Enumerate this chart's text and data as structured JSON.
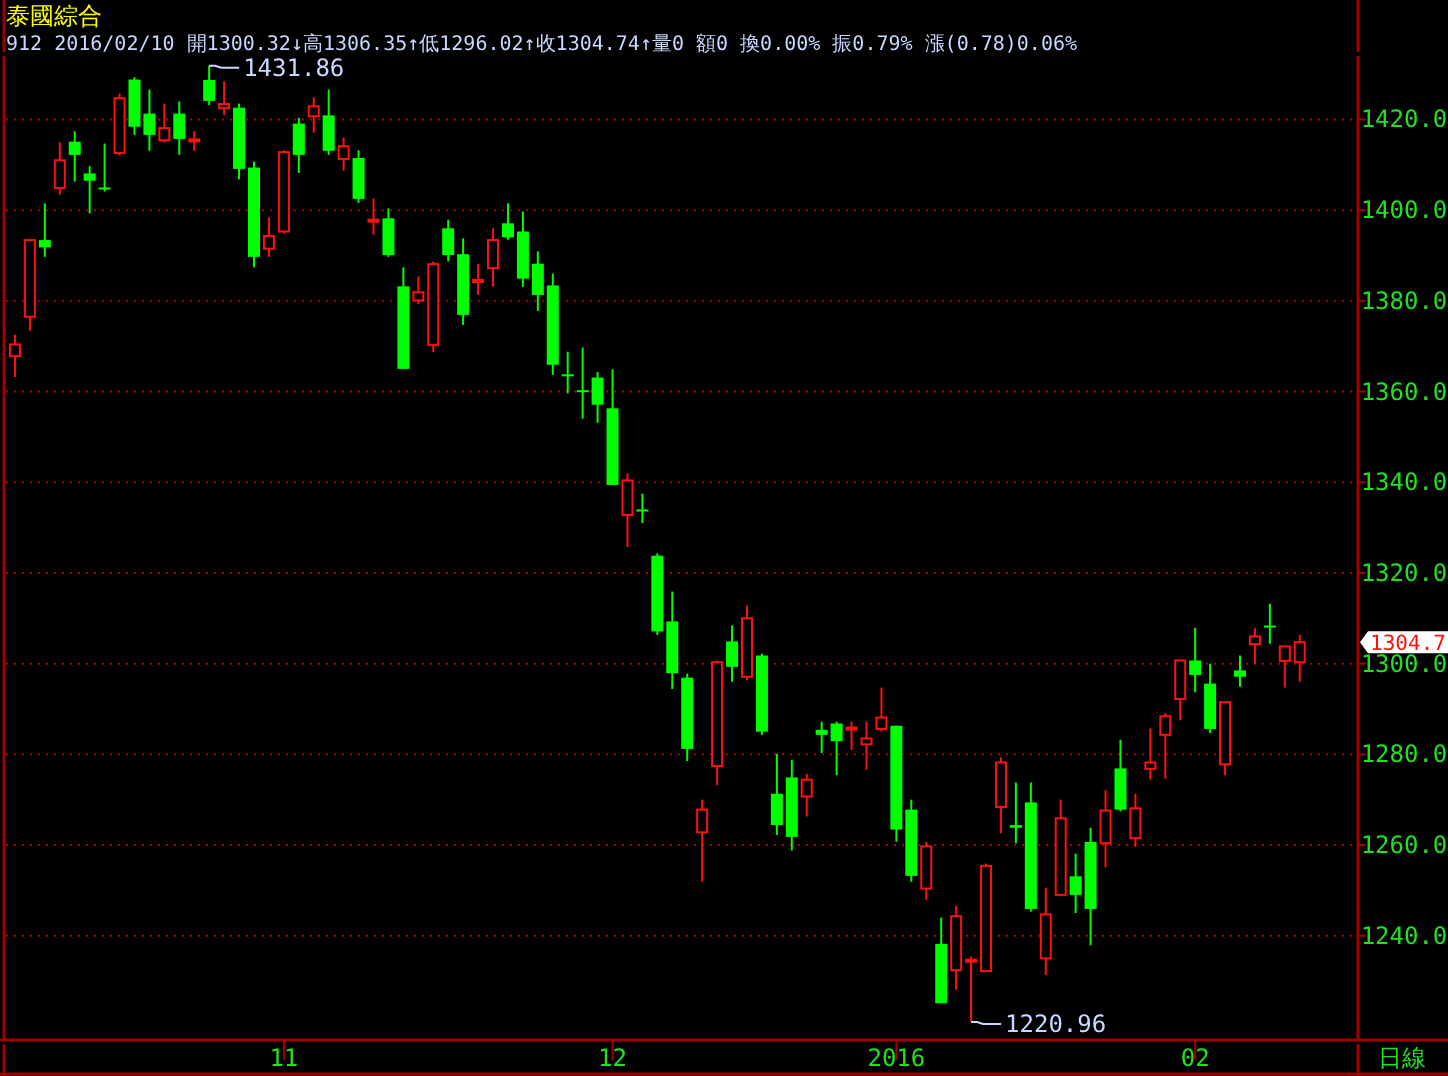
{
  "chart_data": {
    "type": "candlestick",
    "title": "泰國綜合",
    "subtitle": "912 2016/02/10 開1300.32↓高1306.35↑低1296.02↑收1304.74↑量0 額0 換0.00% 振0.79% 漲(0.78)0.06%",
    "categories": [
      null,
      null,
      null,
      null,
      null,
      null,
      null,
      null,
      null,
      null,
      null,
      null,
      null,
      null,
      null,
      null,
      null,
      null,
      "11",
      null,
      null,
      null,
      null,
      null,
      null,
      null,
      null,
      null,
      null,
      null,
      null,
      null,
      null,
      null,
      null,
      null,
      null,
      null,
      null,
      null,
      "12",
      null,
      null,
      null,
      null,
      null,
      null,
      null,
      null,
      null,
      null,
      null,
      null,
      null,
      null,
      null,
      null,
      null,
      null,
      "2016",
      null,
      null,
      null,
      null,
      null,
      null,
      null,
      null,
      null,
      null,
      null,
      null,
      null,
      null,
      null,
      null,
      null,
      null,
      null,
      "02",
      null,
      null,
      null,
      null,
      null,
      null,
      null
    ],
    "ohlc": [
      [
        1367.8,
        1372.5,
        1363.2,
        1370.4
      ],
      [
        1376.5,
        1393.4,
        1373.4,
        1393.4
      ],
      [
        1393.4,
        1401.5,
        1389.7,
        1391.8
      ],
      [
        1404.9,
        1415.0,
        1403.4,
        1411.0
      ],
      [
        1415.1,
        1417.4,
        1406.3,
        1412.2
      ],
      [
        1408.1,
        1409.7,
        1399.3,
        1406.5
      ],
      [
        1405.0,
        1414.7,
        1404.1,
        1404.7
      ],
      [
        1412.6,
        1425.7,
        1412.1,
        1424.7
      ],
      [
        1428.8,
        1429.3,
        1416.6,
        1418.4
      ],
      [
        1421.3,
        1426.6,
        1413.1,
        1416.6
      ],
      [
        1415.4,
        1423.5,
        1414.9,
        1418.1
      ],
      [
        1421.3,
        1424.0,
        1412.2,
        1415.7
      ],
      [
        1415.3,
        1417.4,
        1413.1,
        1415.6
      ],
      [
        1428.7,
        1431.86,
        1423.2,
        1424.1
      ],
      [
        1422.5,
        1428.4,
        1421.0,
        1423.4
      ],
      [
        1422.6,
        1423.5,
        1406.8,
        1409.1
      ],
      [
        1409.4,
        1410.7,
        1387.4,
        1389.7
      ],
      [
        1391.5,
        1398.4,
        1389.7,
        1394.3
      ],
      [
        1395.3,
        1413.2,
        1394.9,
        1412.8
      ],
      [
        1419.1,
        1420.4,
        1408.2,
        1412.2
      ],
      [
        1420.7,
        1424.9,
        1417.1,
        1422.9
      ],
      [
        1420.9,
        1426.6,
        1412.2,
        1413.1
      ],
      [
        1411.3,
        1416.0,
        1408.7,
        1414.1
      ],
      [
        1411.5,
        1413.2,
        1401.6,
        1402.5
      ],
      [
        1397.6,
        1402.6,
        1394.6,
        1397.9
      ],
      [
        1398.2,
        1400.4,
        1389.7,
        1390.1
      ],
      [
        1383.2,
        1387.4,
        1365.0,
        1365.0
      ],
      [
        1380.1,
        1385.4,
        1379.3,
        1381.9
      ],
      [
        1370.3,
        1388.7,
        1368.7,
        1388.1
      ],
      [
        1396.0,
        1397.9,
        1388.7,
        1390.1
      ],
      [
        1390.3,
        1393.8,
        1374.7,
        1376.9
      ],
      [
        1384.3,
        1388.1,
        1381.3,
        1384.6
      ],
      [
        1387.2,
        1396.0,
        1383.1,
        1393.4
      ],
      [
        1397.1,
        1401.5,
        1393.5,
        1394.0
      ],
      [
        1395.3,
        1399.7,
        1383.1,
        1384.9
      ],
      [
        1388.2,
        1390.9,
        1377.8,
        1381.3
      ],
      [
        1383.4,
        1386.0,
        1363.7,
        1365.9
      ],
      [
        1363.8,
        1368.8,
        1359.6,
        1363.5
      ],
      [
        1360.3,
        1369.7,
        1354.0,
        1360.0
      ],
      [
        1363.1,
        1364.3,
        1353.1,
        1357.1
      ],
      [
        1356.3,
        1364.9,
        1339.4,
        1339.4
      ],
      [
        1332.8,
        1341.9,
        1325.7,
        1340.4
      ],
      [
        1334.0,
        1337.5,
        1331.0,
        1333.7
      ],
      [
        1323.8,
        1324.3,
        1306.3,
        1307.1
      ],
      [
        1309.3,
        1315.9,
        1294.4,
        1297.9
      ],
      [
        1296.9,
        1297.8,
        1278.5,
        1281.2
      ],
      [
        1262.8,
        1270.0,
        1251.9,
        1267.8
      ],
      [
        1277.4,
        1300.7,
        1273.2,
        1300.3
      ],
      [
        1304.9,
        1308.4,
        1296.0,
        1299.3
      ],
      [
        1297.1,
        1312.8,
        1296.3,
        1310.0
      ],
      [
        1301.8,
        1302.2,
        1284.3,
        1285.0
      ],
      [
        1271.3,
        1280.1,
        1262.2,
        1264.4
      ],
      [
        1274.9,
        1278.8,
        1258.8,
        1261.8
      ],
      [
        1270.7,
        1275.7,
        1266.3,
        1274.4
      ],
      [
        1285.4,
        1287.2,
        1280.3,
        1284.3
      ],
      [
        1286.8,
        1287.2,
        1275.4,
        1282.9
      ],
      [
        1285.6,
        1287.2,
        1281.0,
        1285.9
      ],
      [
        1282.2,
        1287.2,
        1276.6,
        1283.5
      ],
      [
        1285.6,
        1294.7,
        1285.0,
        1288.1
      ],
      [
        1286.3,
        1286.3,
        1260.7,
        1263.4
      ],
      [
        1267.8,
        1270.0,
        1251.9,
        1253.2
      ],
      [
        1250.4,
        1260.7,
        1247.9,
        1259.7
      ],
      [
        1238.2,
        1244.0,
        1225.1,
        1225.1
      ],
      [
        1232.4,
        1246.6,
        1228.1,
        1244.3
      ],
      [
        1234.4,
        1235.4,
        1220.96,
        1234.7
      ],
      [
        1232.2,
        1255.9,
        1232.2,
        1255.4
      ],
      [
        1268.4,
        1279.3,
        1262.6,
        1278.2
      ],
      [
        1264.4,
        1273.8,
        1260.4,
        1263.8
      ],
      [
        1269.4,
        1273.8,
        1245.3,
        1245.9
      ],
      [
        1235.0,
        1250.6,
        1231.3,
        1244.7
      ],
      [
        1249.0,
        1270.0,
        1248.7,
        1265.9
      ],
      [
        1253.1,
        1258.1,
        1245.0,
        1249.0
      ],
      [
        1260.7,
        1263.8,
        1237.9,
        1245.9
      ],
      [
        1260.4,
        1272.1,
        1255.1,
        1267.6
      ],
      [
        1276.9,
        1283.2,
        1267.4,
        1267.8
      ],
      [
        1261.5,
        1271.3,
        1259.6,
        1268.1
      ],
      [
        1276.8,
        1285.7,
        1274.4,
        1278.2
      ],
      [
        1284.3,
        1289.1,
        1274.6,
        1288.4
      ],
      [
        1292.2,
        1300.7,
        1287.5,
        1300.7
      ],
      [
        1300.7,
        1307.9,
        1293.7,
        1297.5
      ],
      [
        1295.6,
        1300.0,
        1284.7,
        1285.6
      ],
      [
        1277.8,
        1291.5,
        1275.4,
        1291.5
      ],
      [
        1298.5,
        1301.8,
        1294.9,
        1297.1
      ],
      [
        1304.3,
        1307.8,
        1300.0,
        1306.0
      ],
      [
        1308.4,
        1313.2,
        1304.4,
        1308.1
      ],
      [
        1300.6,
        1303.8,
        1294.7,
        1303.8
      ],
      [
        1300.32,
        1306.35,
        1296.02,
        1304.74
      ]
    ],
    "ylim": [
      1217,
      1434
    ],
    "yticks": [
      {
        "value": 1240,
        "label": "1240.0"
      },
      {
        "value": 1260,
        "label": "1260.0"
      },
      {
        "value": 1280,
        "label": "1280.0"
      },
      {
        "value": 1300,
        "label": "1300.0"
      },
      {
        "value": 1320,
        "label": "1320.0"
      },
      {
        "value": 1340,
        "label": "1340.0"
      },
      {
        "value": 1360,
        "label": "1360.0"
      },
      {
        "value": 1380,
        "label": "1380.0"
      },
      {
        "value": 1400,
        "label": "1400.0"
      },
      {
        "value": 1420,
        "label": "1420.0"
      }
    ],
    "grid": "y",
    "annotations": [
      "1431.86",
      "1220.96",
      "1304.7",
      "日線"
    ]
  }
}
